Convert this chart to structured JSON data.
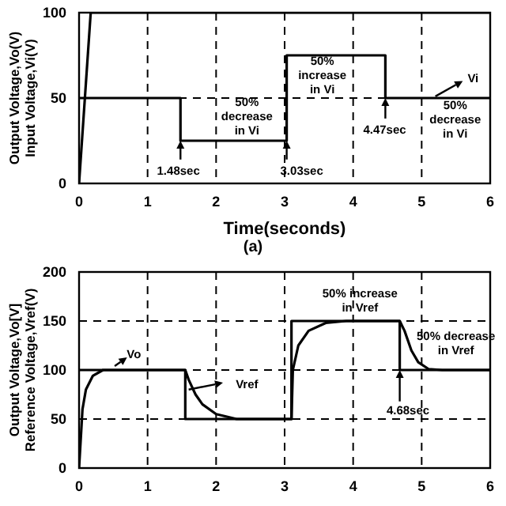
{
  "chart_data": [
    {
      "type": "line",
      "xlabel": "Time(seconds)",
      "ylabel": "Output Voltage,Vo(V)\nInput Voltage,Vi(V)",
      "xlim": [
        0,
        6
      ],
      "xticks": [
        0,
        1,
        2,
        3,
        4,
        5,
        6
      ],
      "ylim": [
        0,
        100
      ],
      "yticks": [
        0,
        50,
        100
      ],
      "grid": true,
      "series": [
        {
          "color": "#000000",
          "x": [
            0,
            1.48,
            1.48,
            3.03,
            3.03,
            4.47,
            4.47,
            6
          ],
          "values": [
            50,
            50,
            25,
            25,
            75,
            75,
            50,
            50
          ]
        },
        {
          "color": "#000000",
          "x": [
            0,
            0.17,
            6
          ],
          "values": [
            0,
            100,
            100
          ]
        }
      ],
      "annotations": [
        "50%\ndecrease\nin Vi",
        "1.48sec",
        "3.03sec",
        "50%\nincrease\nin Vi",
        "4.47sec",
        "Vi",
        "50%\ndecrease\nin Vi",
        "(a)"
      ]
    },
    {
      "type": "line",
      "ylabel": "Output Voltage,Vo[V]\nReference Voltage,Vref(V)",
      "xlim": [
        0,
        6
      ],
      "xticks": [
        0,
        1,
        2,
        3,
        4,
        5,
        6
      ],
      "ylim": [
        0,
        200
      ],
      "yticks": [
        0,
        50,
        100,
        150,
        200
      ],
      "grid": true,
      "series": [
        {
          "color": "#000000",
          "x": [
            0,
            1.55,
            1.55,
            3.1,
            3.1,
            4.68,
            4.68,
            6
          ],
          "values": [
            100,
            100,
            50,
            50,
            150,
            150,
            100,
            100
          ]
        },
        {
          "color": "#000000",
          "x": [
            0,
            0.05,
            0.1,
            0.2,
            0.35,
            1.55,
            1.6,
            1.7,
            1.8,
            2.0,
            2.3,
            3.1,
            3.12,
            3.2,
            3.35,
            3.6,
            3.9,
            4.68,
            4.75,
            4.85,
            4.95,
            5.1,
            5.3,
            6
          ],
          "values": [
            0,
            60,
            80,
            94,
            100,
            100,
            90,
            75,
            65,
            55,
            50,
            50,
            100,
            125,
            140,
            148,
            150,
            150,
            140,
            120,
            108,
            101,
            100,
            100
          ]
        }
      ],
      "annotations": [
        "Vo",
        "Vref",
        "50% increase\nin Vref",
        "50% decrease\nin Vref",
        "4.68sec"
      ]
    }
  ]
}
